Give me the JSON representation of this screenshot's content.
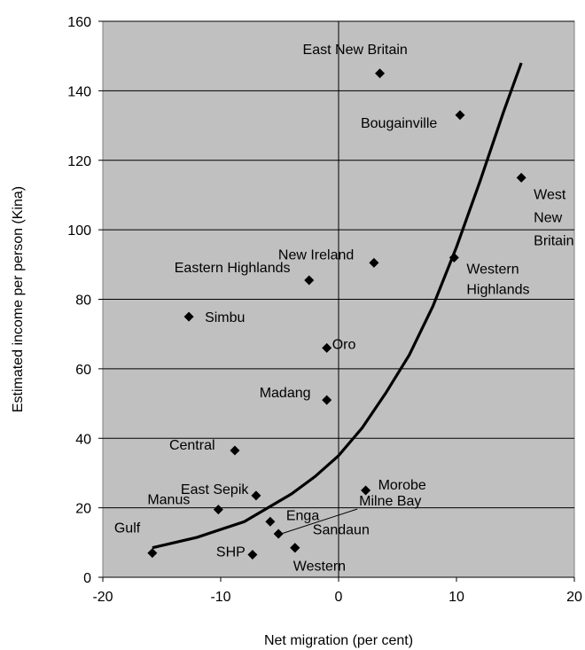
{
  "chart_data": {
    "type": "scatter",
    "xlabel": "Net migration (per cent)",
    "ylabel": "Estimated income per person (Kina)",
    "xlim": [
      -20,
      20
    ],
    "ylim": [
      0,
      160
    ],
    "x_ticks": [
      -20,
      -10,
      0,
      10,
      20
    ],
    "y_ticks": [
      0,
      20,
      40,
      60,
      80,
      100,
      120,
      140,
      160
    ],
    "x_tick_labels": [
      "-20",
      "-10",
      "0",
      "10",
      "20"
    ],
    "y_tick_labels": [
      "0",
      "20",
      "40",
      "60",
      "80",
      "100",
      "120",
      "140",
      "160"
    ],
    "grid": "horizontal",
    "plot_background": "#c0c0c0",
    "marker": "diamond",
    "points": [
      {
        "label": "East New Britain",
        "x": 3.5,
        "y": 145
      },
      {
        "label": "Bougainville",
        "x": 10.3,
        "y": 133
      },
      {
        "label": [
          "West",
          "New",
          "Britain"
        ],
        "x": 15.5,
        "y": 115
      },
      {
        "label": "New Ireland",
        "x": 3.0,
        "y": 90.5
      },
      {
        "label": [
          "Western",
          "Highlands"
        ],
        "x": 9.8,
        "y": 92
      },
      {
        "label": "Eastern Highlands",
        "x": -2.5,
        "y": 85.5
      },
      {
        "label": "Simbu",
        "x": -12.7,
        "y": 75
      },
      {
        "label": "Oro",
        "x": -1.0,
        "y": 66
      },
      {
        "label": "Madang",
        "x": -1.0,
        "y": 51
      },
      {
        "label": "Central",
        "x": -8.8,
        "y": 36.5
      },
      {
        "label": "Morobe",
        "x": 2.3,
        "y": 25
      },
      {
        "label": "East Sepik",
        "x": -7.0,
        "y": 23.5
      },
      {
        "label": "Manus",
        "x": -10.2,
        "y": 19.5
      },
      {
        "label": "Enga",
        "x": -5.8,
        "y": 16
      },
      {
        "label": "Milne Bay",
        "x": -5.1,
        "y": 12.5
      },
      {
        "label": "Sandaun",
        "x": -3.7,
        "y": 8.5
      },
      {
        "label": "SHP",
        "x": -7.3,
        "y": 6.5
      },
      {
        "label": "Gulf",
        "x": -15.8,
        "y": 7
      },
      {
        "label": "Western",
        "x": -3.7,
        "y": 8.5
      }
    ],
    "trendline": {
      "type": "exponential",
      "x": [
        -15.8,
        -12,
        -8,
        -4,
        -2,
        0,
        2,
        4,
        6,
        8,
        10,
        12,
        14,
        15.5
      ],
      "y": [
        8.5,
        11.5,
        16,
        24,
        29,
        35,
        43,
        53,
        64,
        78,
        95,
        114,
        134,
        148
      ]
    }
  }
}
